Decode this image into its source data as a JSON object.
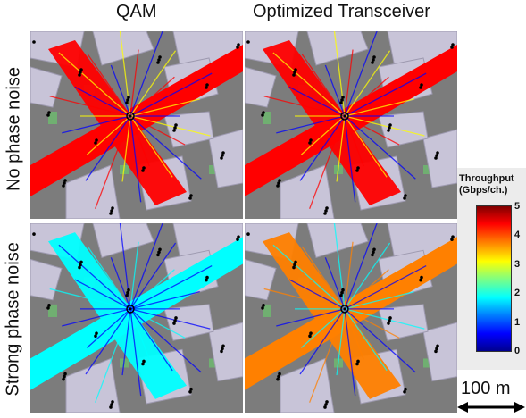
{
  "columns": [
    "QAM",
    "Optimized Transceiver"
  ],
  "rows": [
    "No phase noise",
    "Strong phase noise"
  ],
  "panels": [
    {
      "id": "qam-no-noise",
      "level": 4.6
    },
    {
      "id": "opt-no-noise",
      "level": 4.6
    },
    {
      "id": "qam-strong-noise",
      "level": 2.1
    },
    {
      "id": "opt-strong-noise",
      "level": 3.6
    }
  ],
  "colorbar": {
    "title_line1": "Throughput",
    "title_line2": "(Gbps/ch.)",
    "ticks": [
      "5",
      "4",
      "3",
      "2",
      "1",
      "0"
    ],
    "min": 0,
    "max": 5,
    "colors": [
      "#00008f",
      "#0000ff",
      "#0080ff",
      "#00ffff",
      "#80ff80",
      "#ffff00",
      "#ff8000",
      "#ff0000",
      "#800000"
    ]
  },
  "scale_bar": {
    "label": "100 m"
  }
}
